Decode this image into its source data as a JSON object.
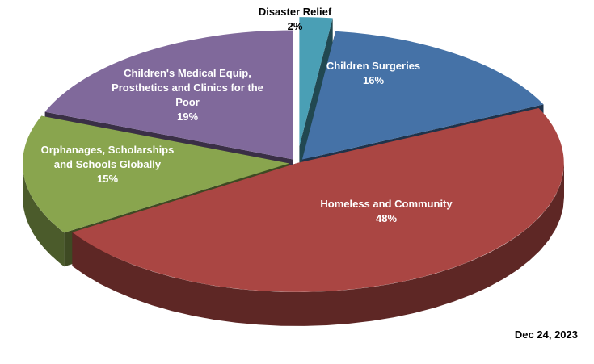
{
  "chart_data": {
    "type": "pie",
    "style": "3d-exploded",
    "slices": [
      {
        "label": "Disaster Relief",
        "value": 2,
        "pct_label": "2%",
        "color": "#4a9fb5"
      },
      {
        "label": "Children Surgeries",
        "value": 16,
        "pct_label": "16%",
        "color": "#4572a7"
      },
      {
        "label": "Homeless and Community",
        "value": 48,
        "pct_label": "48%",
        "color": "#aa4643"
      },
      {
        "label": "Orphanages, Scholarships and Schools Globally",
        "value": 15,
        "pct_label": "15%",
        "color": "#89a54e"
      },
      {
        "label": "Children's Medical Equip, Prosthetics and Clinics for the Poor",
        "value": 19,
        "pct_label": "19%",
        "color": "#80699b"
      }
    ],
    "date": "Dec 24, 2023"
  }
}
